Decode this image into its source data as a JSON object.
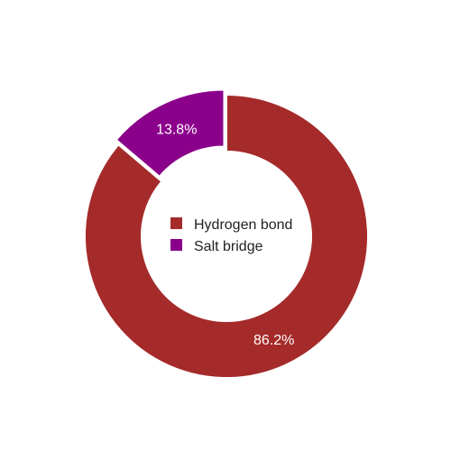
{
  "chart_data": {
    "type": "pie",
    "donut": true,
    "title": "",
    "slices": [
      {
        "label": "Hydrogen bond",
        "value": 86.2,
        "value_label": "86.2%",
        "color": "#a52a2a"
      },
      {
        "label": "Salt bridge",
        "value": 13.8,
        "value_label": "13.8%",
        "color": "#8b008b",
        "exploded": true
      }
    ],
    "legend": {
      "position": "center"
    }
  }
}
